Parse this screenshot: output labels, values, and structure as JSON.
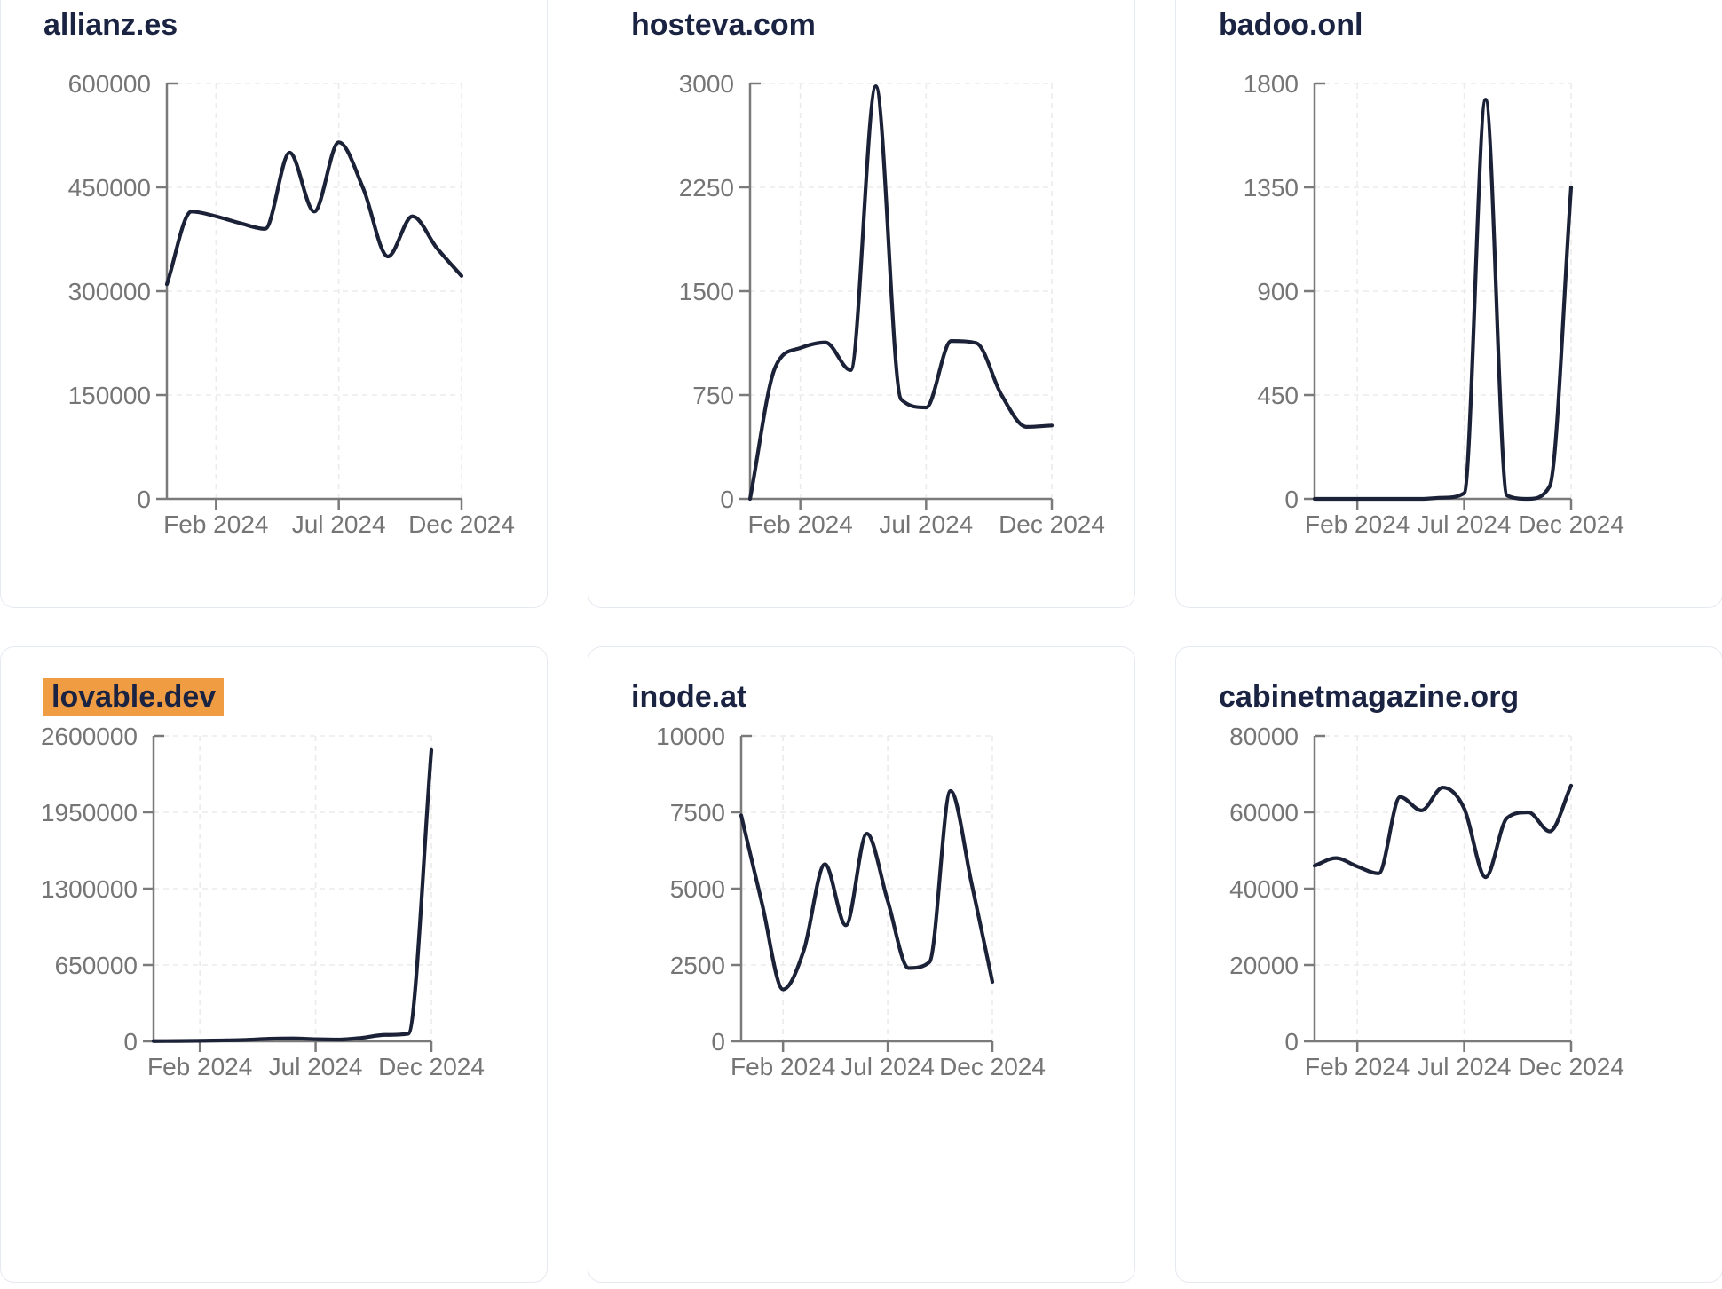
{
  "colors": {
    "line": "#1b2137",
    "title": "#1b2342",
    "tick_label": "#757575",
    "axis": "#7a7a7a",
    "grid": "#ebebeb",
    "card_border": "#e5e9f0",
    "card_bg": "#ffffff",
    "page_bg": "#ffffff",
    "highlight_bg": "#f09c42"
  },
  "x_tick_labels": [
    "Feb 2024",
    "Jul 2024",
    "Dec 2024"
  ],
  "chart_data": [
    {
      "type": "line",
      "title": "allianz.es",
      "highlighted": false,
      "x": [
        "Dec 2023",
        "Jan 2024",
        "Feb 2024",
        "Mar 2024",
        "Apr 2024",
        "May 2024",
        "Jun 2024",
        "Jul 2024",
        "Aug 2024",
        "Sep 2024",
        "Oct 2024",
        "Nov 2024",
        "Dec 2024"
      ],
      "values": [
        310000,
        415000,
        408000,
        398000,
        390000,
        500000,
        415000,
        515000,
        448000,
        350000,
        408000,
        362000,
        322000
      ],
      "ylim": [
        0,
        600000
      ],
      "y_ticks": [
        0,
        150000,
        300000,
        450000,
        600000
      ],
      "x_tick_labels": [
        "Feb 2024",
        "Jul 2024",
        "Dec 2024"
      ],
      "xlabel": "",
      "ylabel": "",
      "grid": true,
      "legend": "none"
    },
    {
      "type": "line",
      "title": "hosteva.com",
      "highlighted": false,
      "x": [
        "Dec 2023",
        "Jan 2024",
        "Feb 2024",
        "Mar 2024",
        "Apr 2024",
        "May 2024",
        "Jun 2024",
        "Jul 2024",
        "Aug 2024",
        "Sep 2024",
        "Oct 2024",
        "Nov 2024",
        "Dec 2024"
      ],
      "values": [
        0,
        950,
        1090,
        1130,
        930,
        2980,
        720,
        660,
        1140,
        1125,
        750,
        520,
        530
      ],
      "ylim": [
        0,
        3000
      ],
      "y_ticks": [
        0,
        750,
        1500,
        2250,
        3000
      ],
      "x_tick_labels": [
        "Feb 2024",
        "Jul 2024",
        "Dec 2024"
      ],
      "xlabel": "",
      "ylabel": "",
      "grid": true,
      "legend": "none"
    },
    {
      "type": "line",
      "title": "badoo.onl",
      "highlighted": false,
      "x": [
        "Dec 2023",
        "Jan 2024",
        "Feb 2024",
        "Mar 2024",
        "Apr 2024",
        "May 2024",
        "Jun 2024",
        "Jul 2024",
        "Aug 2024",
        "Sep 2024",
        "Oct 2024",
        "Nov 2024",
        "Dec 2024"
      ],
      "values": [
        0,
        0,
        0,
        0,
        0,
        0,
        5,
        25,
        1730,
        15,
        0,
        55,
        1350
      ],
      "ylim": [
        0,
        1800
      ],
      "y_ticks": [
        0,
        450,
        900,
        1350,
        1800
      ],
      "x_tick_labels": [
        "Feb 2024",
        "Jul 2024",
        "Dec 2024"
      ],
      "xlabel": "",
      "ylabel": "",
      "grid": true,
      "legend": "none"
    },
    {
      "type": "line",
      "title": "lovable.dev",
      "highlighted": true,
      "x": [
        "Dec 2023",
        "Jan 2024",
        "Feb 2024",
        "Mar 2024",
        "Apr 2024",
        "May 2024",
        "Jun 2024",
        "Jul 2024",
        "Aug 2024",
        "Sep 2024",
        "Oct 2024",
        "Nov 2024",
        "Dec 2024"
      ],
      "values": [
        2000,
        3000,
        5000,
        8000,
        12000,
        22000,
        25000,
        18000,
        15000,
        30000,
        55000,
        65000,
        2480000
      ],
      "ylim": [
        0,
        2600000
      ],
      "y_ticks": [
        0,
        650000,
        1300000,
        1950000,
        2600000
      ],
      "x_tick_labels": [
        "Feb 2024",
        "Jul 2024",
        "Dec 2024"
      ],
      "xlabel": "",
      "ylabel": "",
      "grid": true,
      "legend": "none"
    },
    {
      "type": "line",
      "title": "inode.at",
      "highlighted": false,
      "x": [
        "Dec 2023",
        "Jan 2024",
        "Feb 2024",
        "Mar 2024",
        "Apr 2024",
        "May 2024",
        "Jun 2024",
        "Jul 2024",
        "Aug 2024",
        "Sep 2024",
        "Oct 2024",
        "Nov 2024",
        "Dec 2024"
      ],
      "values": [
        7400,
        4500,
        1700,
        3000,
        5800,
        3800,
        6800,
        4600,
        2400,
        2600,
        8200,
        5200,
        1950
      ],
      "ylim": [
        0,
        10000
      ],
      "y_ticks": [
        0,
        2500,
        5000,
        7500,
        10000
      ],
      "x_tick_labels": [
        "Feb 2024",
        "Jul 2024",
        "Dec 2024"
      ],
      "xlabel": "",
      "ylabel": "",
      "grid": true,
      "legend": "none"
    },
    {
      "type": "line",
      "title": "cabinetmagazine.org",
      "highlighted": false,
      "x": [
        "Dec 2023",
        "Jan 2024",
        "Feb 2024",
        "Mar 2024",
        "Apr 2024",
        "May 2024",
        "Jun 2024",
        "Jul 2024",
        "Aug 2024",
        "Sep 2024",
        "Oct 2024",
        "Nov 2024",
        "Dec 2024"
      ],
      "values": [
        46000,
        48000,
        45800,
        44000,
        64000,
        60500,
        66500,
        61000,
        43000,
        58500,
        60000,
        55000,
        67000
      ],
      "ylim": [
        0,
        80000
      ],
      "y_ticks": [
        0,
        20000,
        40000,
        60000,
        80000
      ],
      "x_tick_labels": [
        "Feb 2024",
        "Jul 2024",
        "Dec 2024"
      ],
      "xlabel": "",
      "ylabel": "",
      "grid": true,
      "legend": "none"
    }
  ]
}
